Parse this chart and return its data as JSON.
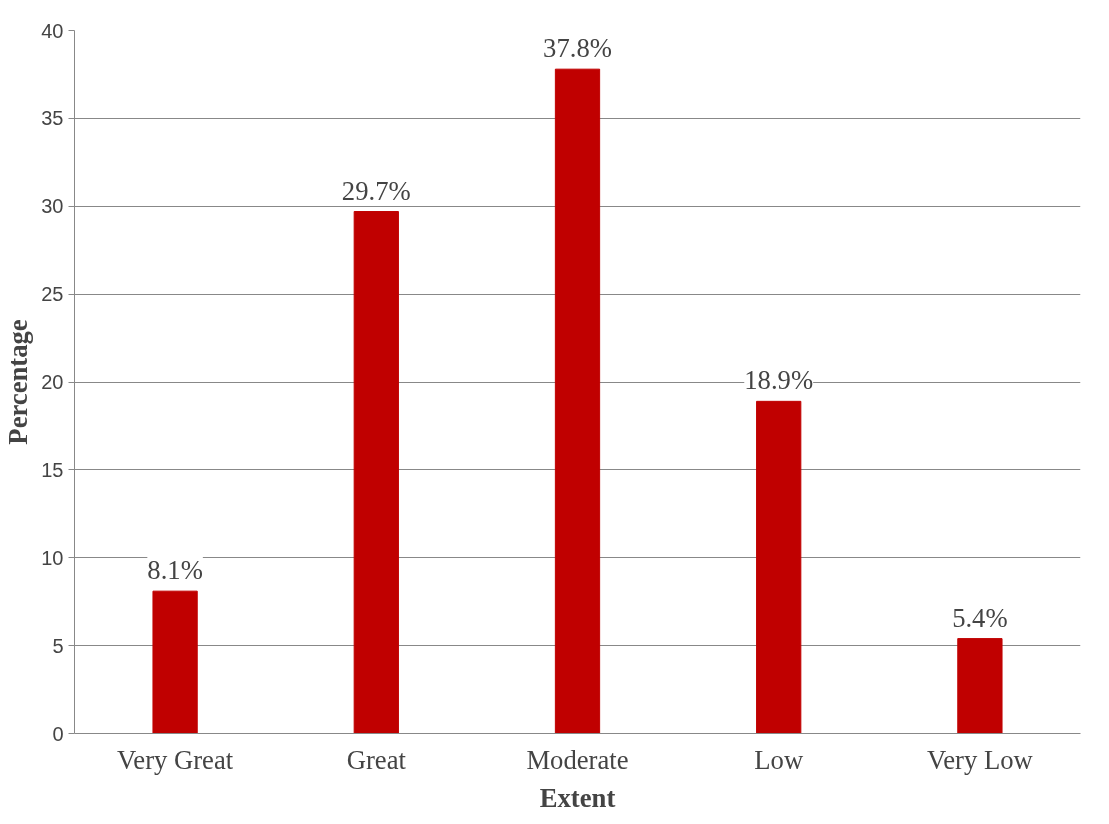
{
  "chart_data": {
    "type": "bar",
    "xlabel": "Extent",
    "ylabel": "Percentage",
    "categories": [
      "Very Great",
      "Great",
      "Moderate",
      "Low",
      "Very Low"
    ],
    "values": [
      8.1,
      29.7,
      37.8,
      18.9,
      5.4
    ],
    "value_labels": [
      "8.1%",
      "29.7%",
      "37.8%",
      "18.9%",
      "5.4%"
    ],
    "color": "#c00000",
    "ylim": [
      0,
      40
    ],
    "yticks": [
      0,
      5,
      10,
      15,
      20,
      25,
      30,
      35,
      40
    ],
    "grid": "y"
  }
}
